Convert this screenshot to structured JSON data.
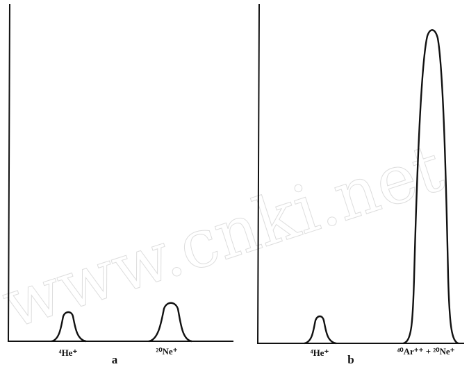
{
  "panels": [
    {
      "letter": "a",
      "peaks": [
        "⁴He⁺",
        "²⁰Ne⁺"
      ]
    },
    {
      "letter": "b",
      "peaks": [
        "⁴He⁺",
        "⁴⁰Ar⁺⁺ + ²⁰Ne⁺"
      ]
    }
  ],
  "watermark": "www.cnki.net"
}
